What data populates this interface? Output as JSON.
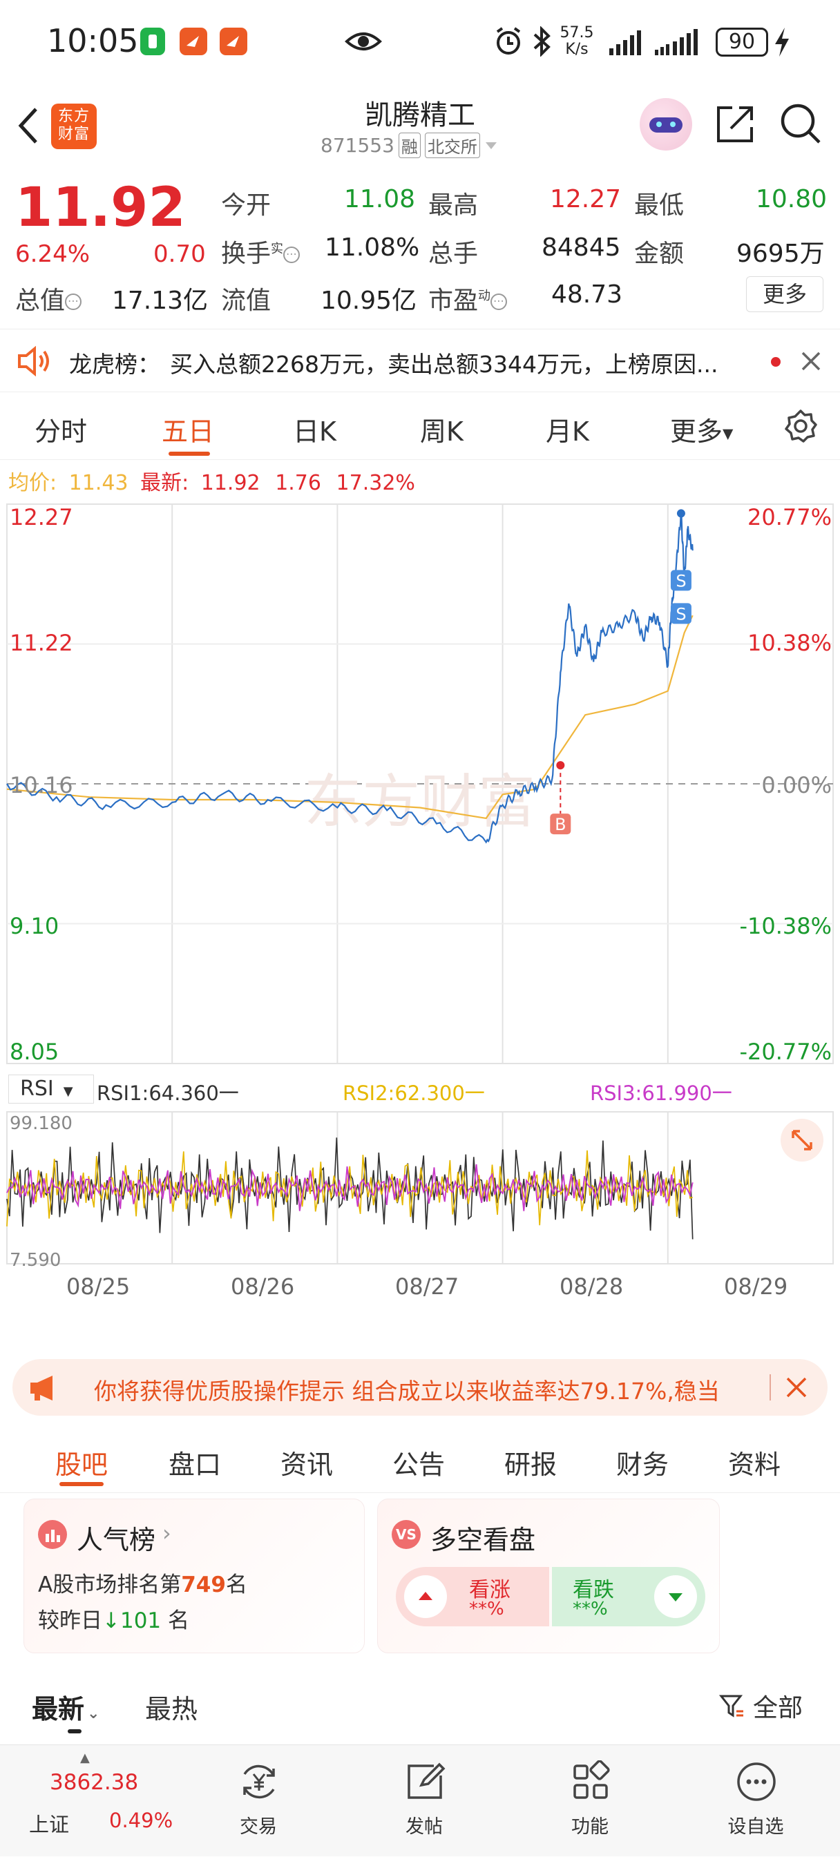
{
  "status_bar": {
    "time": "10:05",
    "net_speed_value": "57.5",
    "net_speed_unit": "K/s",
    "battery": "90"
  },
  "header": {
    "app_logo_text": "东方财富",
    "stock_name": "凯腾精工",
    "stock_code": "871553",
    "tag_margin": "融",
    "tag_exchange": "北交所"
  },
  "quote": {
    "price": "11.92",
    "change_pct": "6.24%",
    "change": "0.70",
    "open_label": "今开",
    "open": "11.08",
    "high_label": "最高",
    "high": "12.27",
    "low_label": "最低",
    "low": "10.80",
    "turnover_label": "换手",
    "turnover_sup": "实",
    "turnover": "11.08%",
    "volume_label": "总手",
    "volume": "84845",
    "amount_label": "金额",
    "amount": "9695万",
    "mktcap_label": "总值",
    "mktcap": "17.13亿",
    "float_label": "流值",
    "float_cap": "10.95亿",
    "pe_label": "市盈",
    "pe_sup": "动",
    "pe": "48.73",
    "more_button": "更多"
  },
  "notice": {
    "label": "龙虎榜：",
    "text": "买入总额2268万元，卖出总额3344万元，上榜原因..."
  },
  "chart_tabs": {
    "items": [
      "分时",
      "五日",
      "日K",
      "周K",
      "月K",
      "更多"
    ],
    "active": "五日"
  },
  "chart_info": {
    "avg_label": "均价:",
    "avg": "11.43",
    "latest_label": "最新:",
    "latest": "11.92",
    "change": "1.76",
    "change_pct": "17.32%"
  },
  "chart_data": {
    "type": "line",
    "days": [
      "08/25",
      "08/26",
      "08/27",
      "08/28",
      "08/29"
    ],
    "y_ticks_left": [
      "12.27",
      "11.22",
      "10.16",
      "9.10",
      "8.05"
    ],
    "y_ticks_right": [
      "20.77%",
      "10.38%",
      "0.00%",
      "-10.38%",
      "-20.77%"
    ],
    "ylim": [
      8.05,
      12.27
    ],
    "prev_close": 10.16,
    "series": [
      {
        "name": "价格",
        "color": "#2b6fc4",
        "x": [
          0,
          0.3,
          0.6,
          1.0,
          1.3,
          1.6,
          2.0,
          2.3,
          2.6,
          2.9,
          3.0,
          3.1,
          3.2,
          3.3,
          3.35,
          3.4,
          3.45,
          3.5,
          3.55,
          3.6,
          3.7,
          3.8,
          3.85,
          3.9,
          3.95,
          4.0,
          4.02,
          4.05,
          4.08,
          4.1,
          4.12,
          4.15
        ],
        "values": [
          10.16,
          10.06,
          10.0,
          10.02,
          10.08,
          10.03,
          9.98,
          9.96,
          9.86,
          9.72,
          10.0,
          10.1,
          10.14,
          10.2,
          11.0,
          11.52,
          11.12,
          11.35,
          11.08,
          11.3,
          11.35,
          11.45,
          11.25,
          11.42,
          11.38,
          11.05,
          11.45,
          11.8,
          12.2,
          11.72,
          12.08,
          11.92
        ]
      },
      {
        "name": "均价",
        "color": "#f0b63c",
        "x": [
          0,
          0.5,
          1.0,
          1.5,
          2.0,
          2.5,
          2.9,
          3.0,
          3.2,
          3.35,
          3.5,
          3.8,
          4.0,
          4.1,
          4.15
        ],
        "values": [
          10.12,
          10.06,
          10.04,
          10.04,
          10.02,
          9.98,
          9.9,
          10.08,
          10.12,
          10.4,
          10.68,
          10.76,
          10.86,
          11.3,
          11.43
        ]
      }
    ],
    "markers": [
      {
        "label": "B",
        "x": 3.35,
        "value": 10.3
      },
      {
        "label": "S",
        "x": 4.08,
        "value": 11.7
      },
      {
        "label": "S",
        "x": 4.08,
        "value": 11.45
      }
    ]
  },
  "rsi": {
    "selector": "RSI",
    "rsi1": "RSI1:64.360一",
    "rsi2": "RSI2:62.300一",
    "rsi3": "RSI3:61.990一",
    "max": "99.180",
    "min": "7.590"
  },
  "ad_banner": {
    "text": "你将获得优质股操作提示 组合成立以来收益率达79.17%,稳当"
  },
  "sub_tabs": {
    "items": [
      "股吧",
      "盘口",
      "资讯",
      "公告",
      "研报",
      "财务",
      "资料"
    ],
    "active": "股吧"
  },
  "popularity_card": {
    "title": "人气榜",
    "rank_prefix": "A股市场排名第",
    "rank": "749",
    "rank_suffix": "名",
    "change_prefix": "较昨日",
    "change": "101",
    "change_suffix": "名"
  },
  "sentiment_card": {
    "title": "多空看盘",
    "bull_label": "看涨",
    "bull_value": "**%",
    "bear_label": "看跌",
    "bear_value": "**%"
  },
  "feed_tabs": {
    "latest": "最新",
    "hot": "最热",
    "filter": "全部"
  },
  "bottom_nav": {
    "index_value": "3862.38",
    "index_name": "上证",
    "index_change": "0.49%",
    "trade": "交易",
    "post": "发帖",
    "functions": "功能",
    "watchlist": "设自选"
  }
}
